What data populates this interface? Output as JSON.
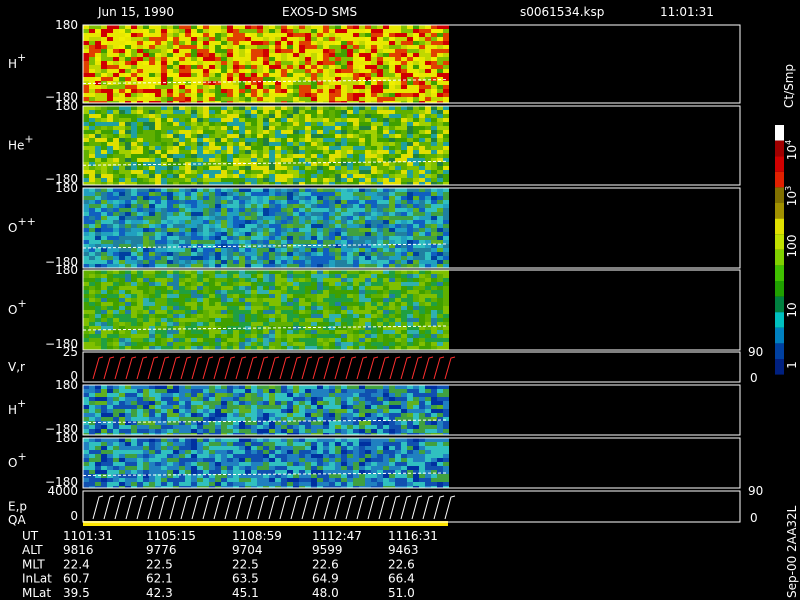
{
  "header": {
    "date": "Jun 15, 1990",
    "instrument": "EXOS-D SMS",
    "file": "s0061534.ksp",
    "time": "11:01:31"
  },
  "panels": [
    {
      "label": "H",
      "sup": "+",
      "top": "180",
      "bottom": "−180"
    },
    {
      "label": "He",
      "sup": "+",
      "top": "180",
      "bottom": "−180"
    },
    {
      "label": "O",
      "sup": "++",
      "top": "180",
      "bottom": "−180"
    },
    {
      "label": "O",
      "sup": "+",
      "top": "180",
      "bottom": "−180"
    },
    {
      "label": "V,r",
      "top": "25",
      "bottom": "0",
      "right_top": "90",
      "right_bottom": "0"
    },
    {
      "label": "H",
      "sup": "+",
      "top": "180",
      "bottom": "−180"
    },
    {
      "label": "O",
      "sup": "+",
      "top": "180",
      "bottom": "−180"
    },
    {
      "label": "E,p",
      "sublabel": "QA",
      "top": "4000",
      "bottom": "0",
      "right_top": "90",
      "right_bottom": "0"
    }
  ],
  "colorbar": {
    "title": "Ct/Smp",
    "labels": [
      {
        "base": "10",
        "exp": "4"
      },
      {
        "base": "10",
        "exp": "3"
      },
      {
        "base": "100"
      },
      {
        "base": "10"
      },
      {
        "base": "1"
      }
    ]
  },
  "table": {
    "rows": [
      [
        "UT",
        "1101:31",
        "1105:15",
        "1108:59",
        "1112:47",
        "1116:31"
      ],
      [
        "ALT",
        "9816",
        "9776",
        "9704",
        "9599",
        "9463"
      ],
      [
        "MLT",
        "22.4",
        "22.5",
        "22.5",
        "22.6",
        "22.6"
      ],
      [
        "InLat",
        "60.7",
        "62.1",
        "63.5",
        "64.9",
        "66.4"
      ],
      [
        "MLat",
        "39.5",
        "42.3",
        "45.1",
        "48.0",
        "51.0"
      ]
    ]
  },
  "footer": "Sep-00 2AA32L"
}
